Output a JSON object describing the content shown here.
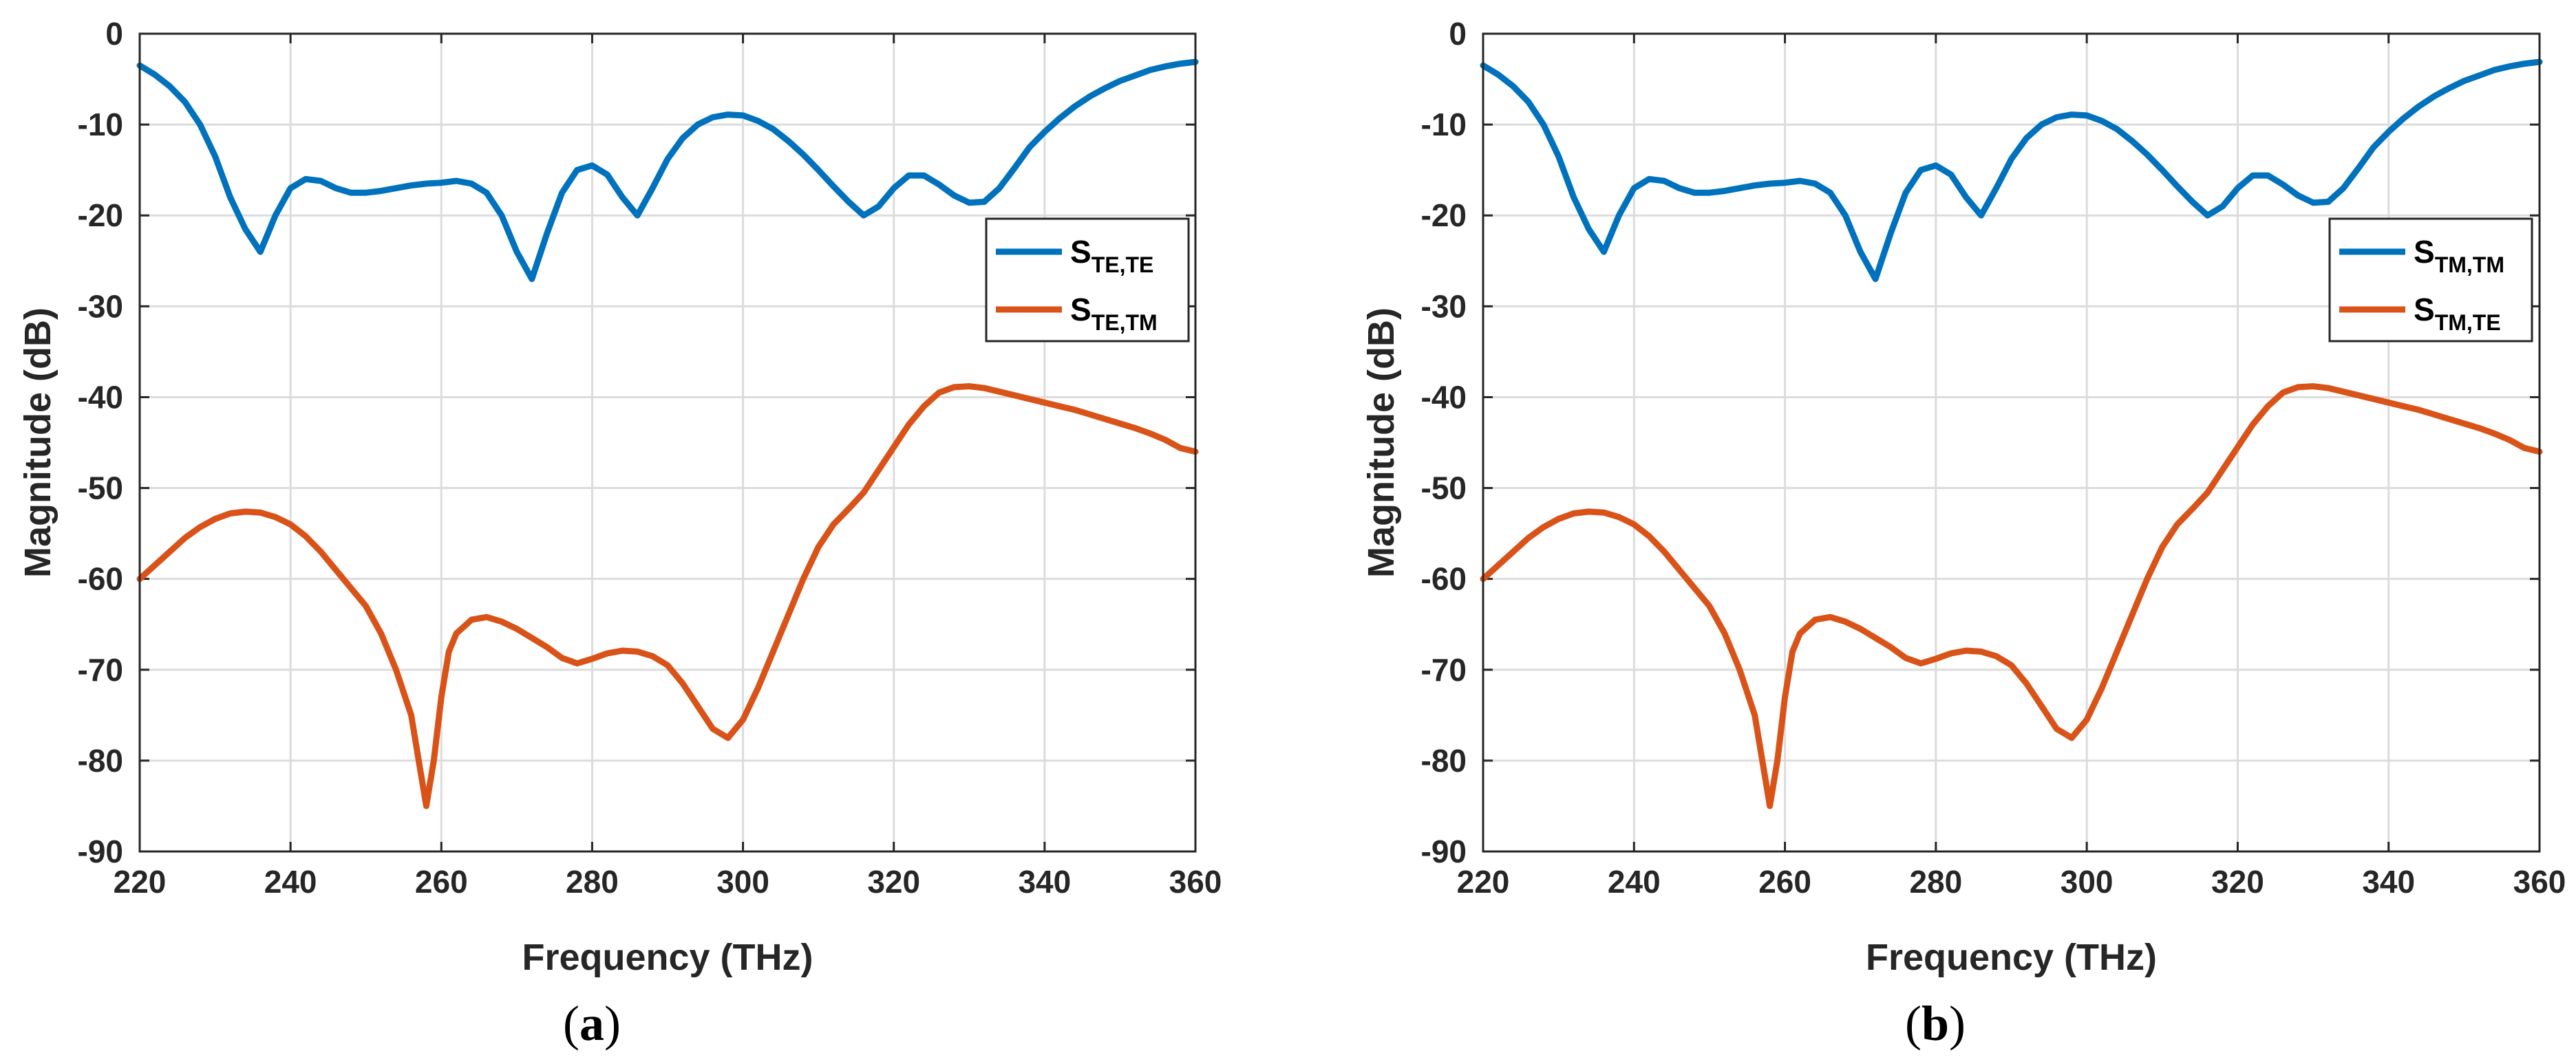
{
  "colors": {
    "blue": "#0072bd",
    "orange": "#d95319"
  },
  "chart_data": [
    {
      "type": "line",
      "caption": {
        "open": "(",
        "letter": "a",
        "close": ")"
      },
      "xlabel": "Frequency (THz)",
      "ylabel": "Magnitude (dB)",
      "xlim": [
        220,
        360
      ],
      "ylim": [
        -90,
        0
      ],
      "xticks": [
        "220",
        "240",
        "260",
        "280",
        "300",
        "320",
        "340",
        "360"
      ],
      "yticks": [
        "0",
        "-10",
        "-20",
        "-30",
        "-40",
        "-50",
        "-60",
        "-70",
        "-80",
        "-90"
      ],
      "grid": true,
      "legend_position": "right, upper-middle",
      "series": [
        {
          "name": "S_TE,TE",
          "base": "S",
          "sub": "TE,TE",
          "color": "#0072bd",
          "x": [
            220,
            222,
            224,
            226,
            228,
            230,
            232,
            234,
            236,
            238,
            240,
            242,
            244,
            246,
            248,
            250,
            252,
            254,
            256,
            258,
            260,
            262,
            264,
            266,
            268,
            270,
            272,
            274,
            276,
            278,
            280,
            282,
            284,
            286,
            288,
            290,
            292,
            294,
            296,
            298,
            300,
            302,
            304,
            306,
            308,
            310,
            312,
            314,
            316,
            318,
            320,
            322,
            324,
            326,
            328,
            330,
            332,
            334,
            336,
            338,
            340,
            342,
            344,
            346,
            348,
            350,
            352,
            354,
            356,
            358,
            360
          ],
          "y": [
            -3.5,
            -4.5,
            -5.8,
            -7.5,
            -10,
            -13.5,
            -18,
            -21.5,
            -24,
            -20,
            -17,
            -16,
            -16.2,
            -17,
            -17.5,
            -17.5,
            -17.3,
            -17,
            -16.7,
            -16.5,
            -16.4,
            -16.2,
            -16.5,
            -17.5,
            -20,
            -24,
            -27,
            -22,
            -17.5,
            -15,
            -14.5,
            -15.5,
            -18,
            -20,
            -17,
            -13.8,
            -11.5,
            -10,
            -9.2,
            -8.9,
            -9,
            -9.6,
            -10.5,
            -11.8,
            -13.3,
            -15,
            -16.8,
            -18.5,
            -20,
            -19,
            -17,
            -15.6,
            -15.6,
            -16.6,
            -17.8,
            -18.6,
            -18.5,
            -17,
            -14.8,
            -12.5,
            -10.8,
            -9.3,
            -8,
            -6.9,
            -6,
            -5.2,
            -4.6,
            -4,
            -3.6,
            -3.3,
            -3.1
          ]
        },
        {
          "name": "S_TE,TM",
          "base": "S",
          "sub": "TE,TM",
          "color": "#d95319",
          "x": [
            220,
            222,
            224,
            226,
            228,
            230,
            232,
            234,
            236,
            238,
            240,
            242,
            244,
            246,
            248,
            250,
            252,
            254,
            256,
            257,
            258,
            259,
            260,
            261,
            262,
            264,
            266,
            268,
            270,
            272,
            274,
            276,
            278,
            280,
            282,
            284,
            286,
            288,
            290,
            292,
            294,
            296,
            298,
            300,
            302,
            304,
            306,
            308,
            310,
            312,
            314,
            316,
            318,
            320,
            322,
            324,
            326,
            328,
            330,
            332,
            334,
            336,
            338,
            340,
            342,
            344,
            346,
            348,
            350,
            352,
            354,
            356,
            358,
            360
          ],
          "y": [
            -60,
            -58.5,
            -57,
            -55.5,
            -54.3,
            -53.4,
            -52.8,
            -52.6,
            -52.7,
            -53.2,
            -54,
            -55.3,
            -57,
            -59,
            -61,
            -63,
            -66,
            -70,
            -75,
            -80,
            -85,
            -80,
            -73,
            -68,
            -66,
            -64.5,
            -64.2,
            -64.7,
            -65.5,
            -66.5,
            -67.5,
            -68.7,
            -69.3,
            -68.8,
            -68.2,
            -67.9,
            -68,
            -68.5,
            -69.5,
            -71.5,
            -74,
            -76.5,
            -77.5,
            -75.5,
            -72,
            -68,
            -64,
            -60,
            -56.5,
            -54,
            -52.3,
            -50.5,
            -48,
            -45.5,
            -43,
            -41,
            -39.5,
            -38.9,
            -38.8,
            -39,
            -39.4,
            -39.8,
            -40.2,
            -40.6,
            -41,
            -41.4,
            -41.9,
            -42.4,
            -42.9,
            -43.4,
            -44,
            -44.7,
            -45.6,
            -46
          ]
        }
      ]
    },
    {
      "type": "line",
      "caption": {
        "open": "(",
        "letter": "b",
        "close": ")"
      },
      "xlabel": "Frequency (THz)",
      "ylabel": "Magnitude (dB)",
      "xlim": [
        220,
        360
      ],
      "ylim": [
        -90,
        0
      ],
      "xticks": [
        "220",
        "240",
        "260",
        "280",
        "300",
        "320",
        "340",
        "360"
      ],
      "yticks": [
        "0",
        "-10",
        "-20",
        "-30",
        "-40",
        "-50",
        "-60",
        "-70",
        "-80",
        "-90"
      ],
      "grid": true,
      "legend_position": "right, upper-middle",
      "series": [
        {
          "name": "S_TM,TM",
          "base": "S",
          "sub": "TM,TM",
          "color": "#0072bd",
          "x": [
            220,
            222,
            224,
            226,
            228,
            230,
            232,
            234,
            236,
            238,
            240,
            242,
            244,
            246,
            248,
            250,
            252,
            254,
            256,
            258,
            260,
            262,
            264,
            266,
            268,
            270,
            272,
            274,
            276,
            278,
            280,
            282,
            284,
            286,
            288,
            290,
            292,
            294,
            296,
            298,
            300,
            302,
            304,
            306,
            308,
            310,
            312,
            314,
            316,
            318,
            320,
            322,
            324,
            326,
            328,
            330,
            332,
            334,
            336,
            338,
            340,
            342,
            344,
            346,
            348,
            350,
            352,
            354,
            356,
            358,
            360
          ],
          "y": [
            -3.5,
            -4.5,
            -5.8,
            -7.5,
            -10,
            -13.5,
            -18,
            -21.5,
            -24,
            -20,
            -17,
            -16,
            -16.2,
            -17,
            -17.5,
            -17.5,
            -17.3,
            -17,
            -16.7,
            -16.5,
            -16.4,
            -16.2,
            -16.5,
            -17.5,
            -20,
            -24,
            -27,
            -22,
            -17.5,
            -15,
            -14.5,
            -15.5,
            -18,
            -20,
            -17,
            -13.8,
            -11.5,
            -10,
            -9.2,
            -8.9,
            -9,
            -9.6,
            -10.5,
            -11.8,
            -13.3,
            -15,
            -16.8,
            -18.5,
            -20,
            -19,
            -17,
            -15.6,
            -15.6,
            -16.6,
            -17.8,
            -18.6,
            -18.5,
            -17,
            -14.8,
            -12.5,
            -10.8,
            -9.3,
            -8,
            -6.9,
            -6,
            -5.2,
            -4.6,
            -4,
            -3.6,
            -3.3,
            -3.1
          ]
        },
        {
          "name": "S_TM,TE",
          "base": "S",
          "sub": "TM,TE",
          "color": "#d95319",
          "x": [
            220,
            222,
            224,
            226,
            228,
            230,
            232,
            234,
            236,
            238,
            240,
            242,
            244,
            246,
            248,
            250,
            252,
            254,
            256,
            257,
            258,
            259,
            260,
            261,
            262,
            264,
            266,
            268,
            270,
            272,
            274,
            276,
            278,
            280,
            282,
            284,
            286,
            288,
            290,
            292,
            294,
            296,
            298,
            300,
            302,
            304,
            306,
            308,
            310,
            312,
            314,
            316,
            318,
            320,
            322,
            324,
            326,
            328,
            330,
            332,
            334,
            336,
            338,
            340,
            342,
            344,
            346,
            348,
            350,
            352,
            354,
            356,
            358,
            360
          ],
          "y": [
            -60,
            -58.5,
            -57,
            -55.5,
            -54.3,
            -53.4,
            -52.8,
            -52.6,
            -52.7,
            -53.2,
            -54,
            -55.3,
            -57,
            -59,
            -61,
            -63,
            -66,
            -70,
            -75,
            -80,
            -85,
            -80,
            -73,
            -68,
            -66,
            -64.5,
            -64.2,
            -64.7,
            -65.5,
            -66.5,
            -67.5,
            -68.7,
            -69.3,
            -68.8,
            -68.2,
            -67.9,
            -68,
            -68.5,
            -69.5,
            -71.5,
            -74,
            -76.5,
            -77.5,
            -75.5,
            -72,
            -68,
            -64,
            -60,
            -56.5,
            -54,
            -52.3,
            -50.5,
            -48,
            -45.5,
            -43,
            -41,
            -39.5,
            -38.9,
            -38.8,
            -39,
            -39.4,
            -39.8,
            -40.2,
            -40.6,
            -41,
            -41.4,
            -41.9,
            -42.4,
            -42.9,
            -43.4,
            -44,
            -44.7,
            -45.6,
            -46
          ]
        }
      ]
    }
  ]
}
